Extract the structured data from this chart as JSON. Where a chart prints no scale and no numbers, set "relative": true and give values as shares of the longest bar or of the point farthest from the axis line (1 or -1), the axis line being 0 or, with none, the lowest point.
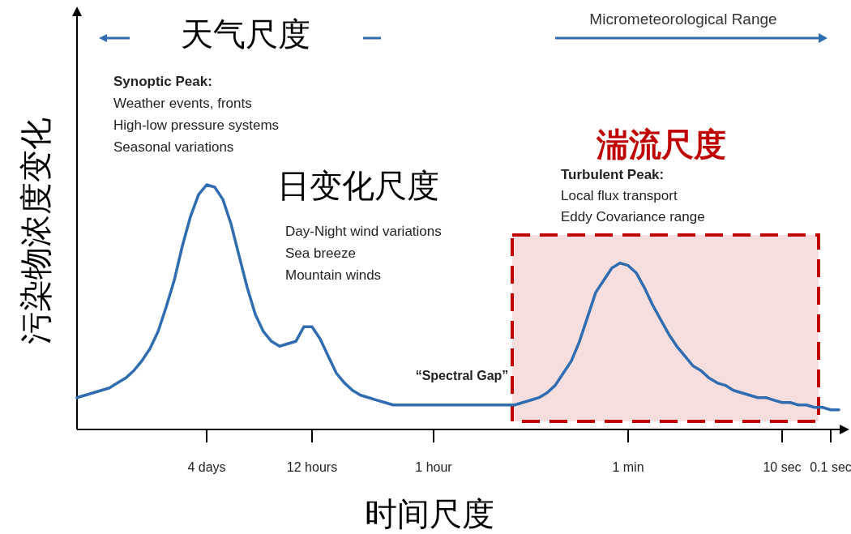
{
  "chart_data": {
    "type": "line",
    "relative": true,
    "xlabel": "时间尺度",
    "ylabel": "污染物浓度变化",
    "categories": [
      null,
      null,
      null,
      null,
      null,
      null,
      null,
      null,
      null,
      null,
      null,
      null,
      null,
      null,
      null,
      null,
      "4 days",
      null,
      null,
      null,
      null,
      null,
      null,
      null,
      null,
      null,
      null,
      null,
      null,
      "12 hours",
      null,
      null,
      null,
      null,
      null,
      null,
      null,
      null,
      null,
      null,
      null,
      null,
      null,
      null,
      "1 hour",
      null,
      null,
      null,
      null,
      null,
      null,
      null,
      null,
      null,
      null,
      null,
      null,
      null,
      null,
      null,
      null,
      null,
      null,
      null,
      null,
      null,
      null,
      null,
      "1 min",
      null,
      null,
      null,
      null,
      null,
      null,
      null,
      null,
      null,
      null,
      null,
      null,
      null,
      null,
      null,
      null,
      null,
      null,
      "10 sec",
      null,
      null,
      null,
      null,
      null,
      "0.1 sec",
      null
    ],
    "series": [
      {
        "color": "#2f6db0",
        "values": [
          0.13,
          0.14,
          0.15,
          0.16,
          0.17,
          0.19,
          0.21,
          0.24,
          0.28,
          0.33,
          0.4,
          0.5,
          0.61,
          0.75,
          0.87,
          0.96,
          1,
          0.99,
          0.94,
          0.84,
          0.71,
          0.58,
          0.47,
          0.4,
          0.36,
          0.34,
          0.35,
          0.36,
          0.42,
          0.42,
          0.37,
          0.3,
          0.23,
          0.19,
          0.16,
          0.14,
          0.13,
          0.12,
          0.11,
          0.1,
          0.1,
          0.1,
          0.1,
          0.1,
          0.1,
          0.1,
          0.1,
          0.1,
          0.1,
          0.1,
          0.1,
          0.1,
          0.1,
          0.1,
          0.1,
          0.11,
          0.12,
          0.13,
          0.15,
          0.18,
          0.23,
          0.28,
          0.36,
          0.46,
          0.56,
          0.61,
          0.66,
          0.68,
          0.67,
          0.64,
          0.58,
          0.51,
          0.45,
          0.39,
          0.34,
          0.3,
          0.26,
          0.24,
          0.21,
          0.19,
          0.18,
          0.16,
          0.15,
          0.14,
          0.13,
          0.13,
          0.12,
          0.11,
          0.11,
          0.1,
          0.1,
          0.09,
          0.09,
          0.08,
          0.08
        ]
      }
    ],
    "annotations": [
      "天气尺度",
      "Micrometeorological Range",
      "Synoptic Peak:\nWeather events, fronts\nHigh-low pressure systems\nSeasonal variations",
      "日变化尺度",
      "Day-Night wind variations\nSea breeze\nMountain winds",
      "湍流尺度",
      "Turbulent Peak:\nLocal flux transport\nEddy Covariance range",
      "“Spectral Gap”"
    ]
  }
}
